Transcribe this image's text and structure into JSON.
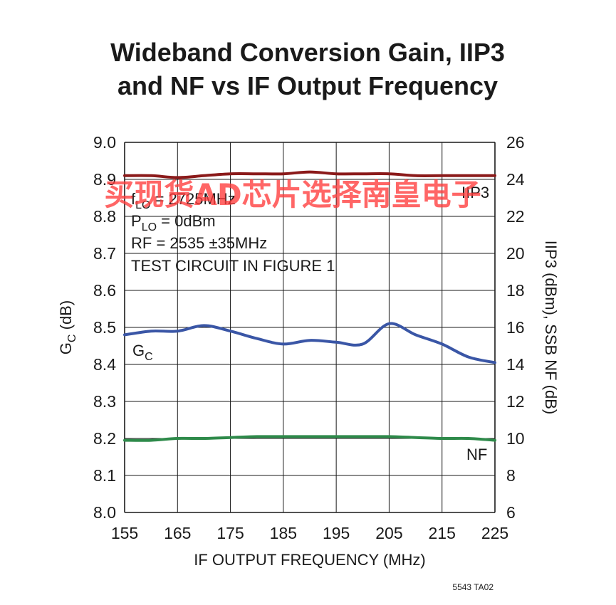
{
  "title": {
    "line1": "Wideband Conversion Gain, IIP3",
    "line2": "and NF vs IF Output Frequency"
  },
  "footnote": "5543 TA02",
  "watermark": "买现货AD芯片选择南皇电子",
  "annotations": {
    "flo_main": "f",
    "flo_sub": "LO",
    "flo_rest": " = 2725MHz",
    "plo_main": "P",
    "plo_sub": "LO",
    "plo_rest": " = 0dBm",
    "rf": "RF = 2535 ±35MHz",
    "test": "TEST CIRCUIT IN FIGURE 1"
  },
  "chart_data": {
    "type": "line",
    "x_label": "IF OUTPUT FREQUENCY (MHz)",
    "y_label_left_main": "G",
    "y_label_left_sub": "C",
    "y_label_left_rest": " (dB)",
    "y_label_right": "IIP3 (dBm), SSB NF (dB)",
    "xlim": [
      155,
      225
    ],
    "ylim_left": [
      8.0,
      9.0
    ],
    "ylim_right": [
      6,
      26
    ],
    "x_ticks": [
      "155",
      "165",
      "175",
      "185",
      "195",
      "205",
      "215",
      "225"
    ],
    "y_ticks_left": [
      "8.0",
      "8.1",
      "8.2",
      "8.3",
      "8.4",
      "8.5",
      "8.6",
      "8.7",
      "8.8",
      "8.9",
      "9.0"
    ],
    "y_ticks_right": [
      "6",
      "8",
      "10",
      "12",
      "14",
      "16",
      "18",
      "20",
      "22",
      "24",
      "26"
    ],
    "grid": true,
    "series": [
      {
        "name": "IIP3",
        "label_main": "IIP3",
        "label_sub": "",
        "axis": "right",
        "color": "#8b1a1a",
        "x": [
          155,
          160,
          165,
          170,
          175,
          180,
          185,
          190,
          195,
          200,
          205,
          210,
          215,
          220,
          225
        ],
        "y": [
          24.2,
          24.2,
          24.1,
          24.2,
          24.3,
          24.3,
          24.3,
          24.4,
          24.3,
          24.3,
          24.3,
          24.2,
          24.2,
          24.2,
          24.2
        ]
      },
      {
        "name": "GC",
        "label_main": "G",
        "label_sub": "C",
        "axis": "left",
        "color": "#3a56a6",
        "x": [
          155,
          160,
          165,
          170,
          175,
          180,
          185,
          190,
          195,
          200,
          205,
          210,
          215,
          220,
          225
        ],
        "y": [
          8.48,
          8.49,
          8.49,
          8.505,
          8.49,
          8.47,
          8.455,
          8.465,
          8.46,
          8.455,
          8.51,
          8.48,
          8.455,
          8.42,
          8.405
        ]
      },
      {
        "name": "NF",
        "label_main": "NF",
        "label_sub": "",
        "axis": "right",
        "color": "#2e8a4a",
        "x": [
          155,
          160,
          165,
          170,
          175,
          180,
          185,
          190,
          195,
          200,
          205,
          210,
          215,
          220,
          225
        ],
        "y": [
          9.9,
          9.9,
          10.0,
          10.0,
          10.05,
          10.1,
          10.1,
          10.1,
          10.1,
          10.1,
          10.1,
          10.05,
          10.0,
          10.0,
          9.9
        ]
      }
    ]
  }
}
